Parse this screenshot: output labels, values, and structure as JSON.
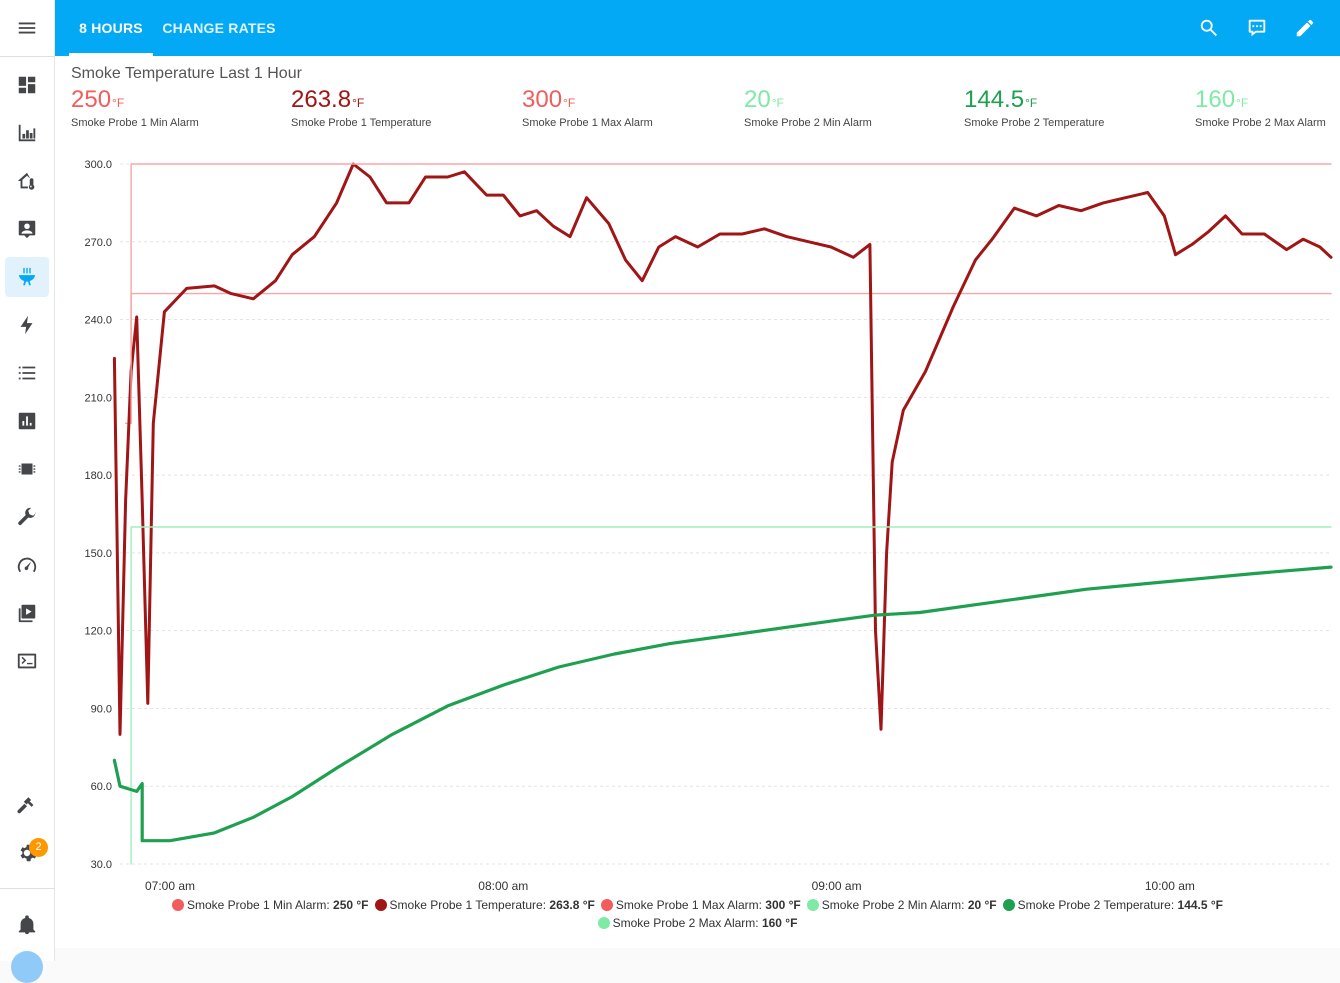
{
  "header": {
    "tabs": [
      {
        "label": "8 HOURS",
        "active": true
      },
      {
        "label": "CHANGE RATES",
        "active": false
      }
    ],
    "icons": [
      "search-icon",
      "assist-chat-icon",
      "edit-pencil-icon"
    ]
  },
  "sidebar": {
    "items": [
      {
        "icon": "menu-icon"
      },
      {
        "icon": "dashboard-icon"
      },
      {
        "icon": "history-chart-icon"
      },
      {
        "icon": "home-thermometer-icon"
      },
      {
        "icon": "person-card-icon"
      },
      {
        "icon": "grill-icon",
        "active": true
      },
      {
        "icon": "lightning-icon"
      },
      {
        "icon": "list-icon"
      },
      {
        "icon": "chart-box-icon"
      },
      {
        "icon": "chip-icon"
      },
      {
        "icon": "wrench-icon"
      },
      {
        "icon": "gauge-icon"
      },
      {
        "icon": "media-icon"
      },
      {
        "icon": "terminal-icon"
      },
      {
        "icon": "hammer-icon"
      },
      {
        "icon": "settings-icon",
        "badge": "2"
      },
      {
        "icon": "bell-icon"
      }
    ]
  },
  "card": {
    "title": "Smoke Temperature Last 1 Hour",
    "stats": [
      {
        "value": "250",
        "unit": "°F",
        "label": "Smoke Probe 1 Min Alarm",
        "color": "#f25c5c"
      },
      {
        "value": "263.8",
        "unit": "°F",
        "label": "Smoke Probe 1 Temperature",
        "color": "#a01515"
      },
      {
        "value": "300",
        "unit": "°F",
        "label": "Smoke Probe 1 Max Alarm",
        "color": "#f25c5c"
      },
      {
        "value": "20",
        "unit": "°F",
        "label": "Smoke Probe 2 Min Alarm",
        "color": "#7fe9a6"
      },
      {
        "value": "144.5",
        "unit": "°F",
        "label": "Smoke Probe 2 Temperature",
        "color": "#1ea050"
      },
      {
        "value": "160",
        "unit": "°F",
        "label": "Smoke Probe 2 Max Alarm",
        "color": "#7fe9a6"
      }
    ]
  },
  "chart_data": {
    "type": "line",
    "title": "",
    "xlabel": "",
    "ylabel": "",
    "x_unit": "time",
    "x_ticks": [
      "07:00 am",
      "08:00 am",
      "09:00 am",
      "10:00 am"
    ],
    "x_range": [
      "06:51 am",
      "10:29 am"
    ],
    "y_ticks": [
      "30.0",
      "60.0",
      "90.0",
      "120.0",
      "150.0",
      "180.0",
      "210.0",
      "240.0",
      "270.0",
      "300.0"
    ],
    "ylim": [
      30,
      300
    ],
    "grid": true,
    "legend_position": "bottom",
    "series": [
      {
        "name": "Smoke Probe 1 Min Alarm",
        "legend_value": "250 °F",
        "color": "#f9a5a5",
        "points": [
          [
            "06:52 am",
            200
          ],
          [
            "06:53 am",
            200
          ],
          [
            "06:53 am",
            250
          ],
          [
            "10:29 am",
            250
          ]
        ]
      },
      {
        "name": "Smoke Probe 1 Temperature",
        "legend_value": "263.8 °F",
        "color": "#a01515",
        "points": [
          [
            "06:50 am",
            225
          ],
          [
            "06:51 am",
            80
          ],
          [
            "06:52 am",
            170
          ],
          [
            "06:53 am",
            220
          ],
          [
            "06:54 am",
            241
          ],
          [
            "06:55 am",
            170
          ],
          [
            "06:56 am",
            92
          ],
          [
            "06:57 am",
            200
          ],
          [
            "06:59 am",
            243
          ],
          [
            "07:03 am",
            252
          ],
          [
            "07:08 am",
            253
          ],
          [
            "07:11 am",
            250
          ],
          [
            "07:15 am",
            248
          ],
          [
            "07:19 am",
            255
          ],
          [
            "07:22 am",
            265
          ],
          [
            "07:26 am",
            272
          ],
          [
            "07:30 am",
            285
          ],
          [
            "07:33 am",
            300
          ],
          [
            "07:36 am",
            295
          ],
          [
            "07:39 am",
            285
          ],
          [
            "07:43 am",
            285
          ],
          [
            "07:46 am",
            295
          ],
          [
            "07:50 am",
            295
          ],
          [
            "07:53 am",
            297
          ],
          [
            "07:57 am",
            288
          ],
          [
            "08:00 am",
            288
          ],
          [
            "08:03 am",
            280
          ],
          [
            "08:06 am",
            282
          ],
          [
            "08:09 am",
            276
          ],
          [
            "08:12 am",
            272
          ],
          [
            "08:15 am",
            287
          ],
          [
            "08:19 am",
            277
          ],
          [
            "08:22 am",
            263
          ],
          [
            "08:25 am",
            255
          ],
          [
            "08:28 am",
            268
          ],
          [
            "08:31 am",
            272
          ],
          [
            "08:35 am",
            268
          ],
          [
            "08:39 am",
            273
          ],
          [
            "08:43 am",
            273
          ],
          [
            "08:47 am",
            275
          ],
          [
            "08:51 am",
            272
          ],
          [
            "08:55 am",
            270
          ],
          [
            "08:59 am",
            268
          ],
          [
            "09:03 am",
            264
          ],
          [
            "09:06 am",
            269
          ],
          [
            "09:07 am",
            120
          ],
          [
            "09:08 am",
            82
          ],
          [
            "09:09 am",
            150
          ],
          [
            "09:10 am",
            185
          ],
          [
            "09:12 am",
            205
          ],
          [
            "09:16 am",
            220
          ],
          [
            "09:21 am",
            245
          ],
          [
            "09:25 am",
            263
          ],
          [
            "09:28 am",
            271
          ],
          [
            "09:32 am",
            283
          ],
          [
            "09:36 am",
            280
          ],
          [
            "09:40 am",
            284
          ],
          [
            "09:44 am",
            282
          ],
          [
            "09:48 am",
            285
          ],
          [
            "09:52 am",
            287
          ],
          [
            "09:56 am",
            289
          ],
          [
            "09:59 am",
            280
          ],
          [
            "10:01 am",
            265
          ],
          [
            "10:04 am",
            269
          ],
          [
            "10:07 am",
            274
          ],
          [
            "10:10 am",
            280
          ],
          [
            "10:13 am",
            273
          ],
          [
            "10:17 am",
            273
          ],
          [
            "10:21 am",
            267
          ],
          [
            "10:24 am",
            271
          ],
          [
            "10:27 am",
            268
          ],
          [
            "10:29 am",
            264
          ]
        ]
      },
      {
        "name": "Smoke Probe 1 Max Alarm",
        "legend_value": "300 °F",
        "color": "#f9a5a5",
        "points": [
          [
            "06:53 am",
            200
          ],
          [
            "06:53 am",
            300
          ],
          [
            "10:29 am",
            300
          ]
        ]
      },
      {
        "name": "Smoke Probe 2 Min Alarm",
        "legend_value": "20 °F",
        "color": "#9ff0be",
        "points": [
          [
            "06:53 am",
            30
          ],
          [
            "06:53 am",
            150
          ]
        ]
      },
      {
        "name": "Smoke Probe 2 Temperature",
        "legend_value": "144.5 °F",
        "color": "#1ea050",
        "points": [
          [
            "06:50 am",
            70
          ],
          [
            "06:51 am",
            60
          ],
          [
            "06:54 am",
            58
          ],
          [
            "06:55 am",
            61
          ],
          [
            "06:55 am",
            39
          ],
          [
            "07:00 am",
            39
          ],
          [
            "07:08 am",
            42
          ],
          [
            "07:15 am",
            48
          ],
          [
            "07:22 am",
            56
          ],
          [
            "07:30 am",
            67
          ],
          [
            "07:40 am",
            80
          ],
          [
            "07:50 am",
            91
          ],
          [
            "08:00 am",
            99
          ],
          [
            "08:10 am",
            106
          ],
          [
            "08:20 am",
            111
          ],
          [
            "08:30 am",
            115
          ],
          [
            "08:40 am",
            118
          ],
          [
            "08:50 am",
            121
          ],
          [
            "09:00 am",
            124
          ],
          [
            "09:07 am",
            126
          ],
          [
            "09:15 am",
            127
          ],
          [
            "09:25 am",
            130
          ],
          [
            "09:35 am",
            133
          ],
          [
            "09:45 am",
            136
          ],
          [
            "09:55 am",
            138
          ],
          [
            "10:05 am",
            140
          ],
          [
            "10:15 am",
            142
          ],
          [
            "10:29 am",
            144.5
          ]
        ]
      },
      {
        "name": "Smoke Probe 2 Max Alarm",
        "legend_value": "160 °F",
        "color": "#9ff0be",
        "points": [
          [
            "06:53 am",
            150
          ],
          [
            "06:53 am",
            160
          ],
          [
            "10:29 am",
            160
          ]
        ]
      }
    ]
  }
}
